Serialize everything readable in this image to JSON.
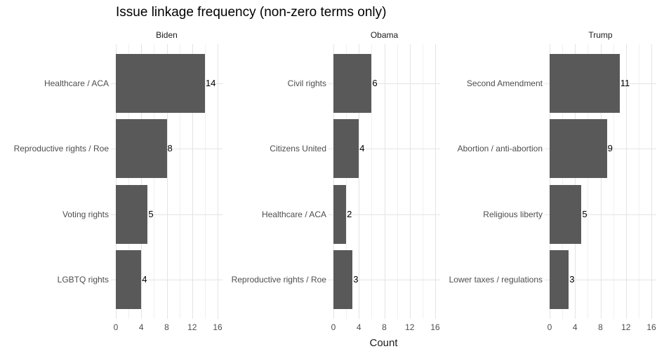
{
  "title": "Issue linkage frequency (non-zero terms only)",
  "chart_data": {
    "type": "bar",
    "orientation": "horizontal",
    "title": "Issue linkage frequency (non-zero terms only)",
    "xlabel": "Count",
    "ylabel": "",
    "xlim": [
      0,
      16
    ],
    "x_major_ticks": [
      0,
      4,
      8,
      12,
      16
    ],
    "x_minor_gridlines": [
      2,
      6,
      10,
      14
    ],
    "grid": "on",
    "legend": "none",
    "value_labels": "shown at bar ends",
    "facets": [
      {
        "label": "Biden",
        "categories": [
          "Healthcare / ACA",
          "Reproductive rights / Roe",
          "Voting rights",
          "LGBTQ rights"
        ],
        "values": [
          14,
          8,
          5,
          4
        ]
      },
      {
        "label": "Obama",
        "categories": [
          "Civil rights",
          "Citizens United",
          "Healthcare / ACA",
          "Reproductive rights / Roe"
        ],
        "values": [
          6,
          4,
          2,
          3
        ]
      },
      {
        "label": "Trump",
        "categories": [
          "Second Amendment",
          "Abortion / anti-abortion",
          "Religious liberty",
          "Lower taxes / regulations"
        ],
        "values": [
          11,
          9,
          5,
          3
        ]
      }
    ],
    "colors": {
      "bar": "#595959",
      "grid_major": "#e4e4e4",
      "grid_minor": "#f0f0f0",
      "axis_text": "#4d4d4d",
      "strip_text": "#1a1a1a",
      "value_label": "#000000",
      "title": "#000000",
      "background": "#ffffff"
    }
  }
}
